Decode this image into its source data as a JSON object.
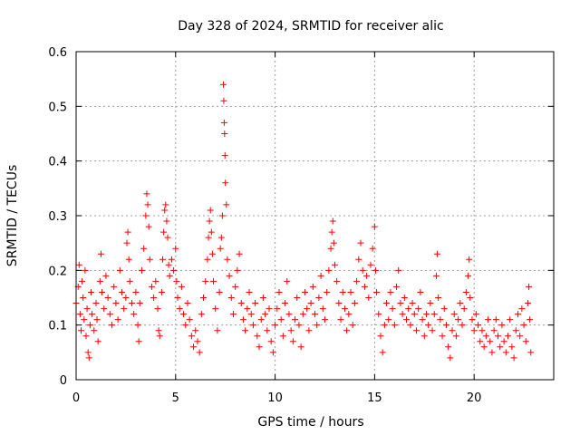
{
  "chart_data": {
    "type": "scatter",
    "title": "Day 328 of 2024, SRMTID for receiver alic",
    "xlabel": "GPS time / hours",
    "ylabel": "SRMTID / TECUs",
    "xlim": [
      0,
      24
    ],
    "ylim": [
      0,
      0.6
    ],
    "xticks": [
      0,
      5,
      10,
      15,
      20
    ],
    "yticks": [
      0,
      0.1,
      0.2,
      0.3,
      0.4,
      0.5,
      0.6
    ],
    "xtick_labels": [
      "0",
      "5",
      "10",
      "15",
      "20"
    ],
    "ytick_labels": [
      "0",
      "0.1",
      "0.2",
      "0.3",
      "0.4",
      "0.5",
      "0.6"
    ],
    "grid": true,
    "marker": "+",
    "series": [
      {
        "name": "SRMTID",
        "color": "#ff0000",
        "points": [
          [
            0.0,
            0.14
          ],
          [
            0.1,
            0.17
          ],
          [
            0.15,
            0.21
          ],
          [
            0.2,
            0.12
          ],
          [
            0.25,
            0.09
          ],
          [
            0.3,
            0.18
          ],
          [
            0.35,
            0.15
          ],
          [
            0.4,
            0.11
          ],
          [
            0.45,
            0.2
          ],
          [
            0.5,
            0.08
          ],
          [
            0.55,
            0.13
          ],
          [
            0.6,
            0.05
          ],
          [
            0.65,
            0.04
          ],
          [
            0.7,
            0.1
          ],
          [
            0.75,
            0.16
          ],
          [
            0.8,
            0.12
          ],
          [
            0.9,
            0.09
          ],
          [
            1.0,
            0.14
          ],
          [
            1.05,
            0.11
          ],
          [
            1.1,
            0.07
          ],
          [
            1.2,
            0.18
          ],
          [
            1.25,
            0.23
          ],
          [
            1.3,
            0.16
          ],
          [
            1.4,
            0.13
          ],
          [
            1.5,
            0.19
          ],
          [
            1.6,
            0.15
          ],
          [
            1.7,
            0.12
          ],
          [
            1.8,
            0.1
          ],
          [
            1.9,
            0.17
          ],
          [
            2.0,
            0.14
          ],
          [
            2.1,
            0.11
          ],
          [
            2.2,
            0.2
          ],
          [
            2.3,
            0.16
          ],
          [
            2.4,
            0.13
          ],
          [
            2.5,
            0.15
          ],
          [
            2.55,
            0.25
          ],
          [
            2.6,
            0.27
          ],
          [
            2.65,
            0.22
          ],
          [
            2.7,
            0.18
          ],
          [
            2.8,
            0.14
          ],
          [
            2.9,
            0.12
          ],
          [
            3.0,
            0.16
          ],
          [
            3.1,
            0.1
          ],
          [
            3.15,
            0.07
          ],
          [
            3.2,
            0.14
          ],
          [
            3.3,
            0.2
          ],
          [
            3.4,
            0.24
          ],
          [
            3.5,
            0.3
          ],
          [
            3.55,
            0.34
          ],
          [
            3.6,
            0.32
          ],
          [
            3.65,
            0.28
          ],
          [
            3.7,
            0.22
          ],
          [
            3.8,
            0.17
          ],
          [
            3.9,
            0.15
          ],
          [
            4.0,
            0.18
          ],
          [
            4.1,
            0.13
          ],
          [
            4.15,
            0.09
          ],
          [
            4.2,
            0.08
          ],
          [
            4.3,
            0.16
          ],
          [
            4.35,
            0.22
          ],
          [
            4.4,
            0.27
          ],
          [
            4.45,
            0.31
          ],
          [
            4.5,
            0.32
          ],
          [
            4.55,
            0.29
          ],
          [
            4.6,
            0.26
          ],
          [
            4.65,
            0.21
          ],
          [
            4.7,
            0.19
          ],
          [
            4.8,
            0.22
          ],
          [
            4.9,
            0.2
          ],
          [
            5.0,
            0.24
          ],
          [
            5.05,
            0.18
          ],
          [
            5.1,
            0.15
          ],
          [
            5.2,
            0.13
          ],
          [
            5.3,
            0.17
          ],
          [
            5.4,
            0.12
          ],
          [
            5.5,
            0.1
          ],
          [
            5.6,
            0.14
          ],
          [
            5.7,
            0.11
          ],
          [
            5.8,
            0.08
          ],
          [
            5.9,
            0.06
          ],
          [
            6.0,
            0.09
          ],
          [
            6.1,
            0.07
          ],
          [
            6.2,
            0.05
          ],
          [
            6.3,
            0.12
          ],
          [
            6.4,
            0.15
          ],
          [
            6.5,
            0.18
          ],
          [
            6.6,
            0.22
          ],
          [
            6.65,
            0.26
          ],
          [
            6.7,
            0.29
          ],
          [
            6.75,
            0.31
          ],
          [
            6.8,
            0.27
          ],
          [
            6.85,
            0.23
          ],
          [
            6.9,
            0.18
          ],
          [
            7.0,
            0.13
          ],
          [
            7.1,
            0.09
          ],
          [
            7.2,
            0.16
          ],
          [
            7.25,
            0.24
          ],
          [
            7.3,
            0.26
          ],
          [
            7.35,
            0.3
          ],
          [
            7.4,
            0.54
          ],
          [
            7.42,
            0.51
          ],
          [
            7.44,
            0.47
          ],
          [
            7.46,
            0.45
          ],
          [
            7.48,
            0.41
          ],
          [
            7.5,
            0.36
          ],
          [
            7.55,
            0.32
          ],
          [
            7.6,
            0.22
          ],
          [
            7.7,
            0.19
          ],
          [
            7.8,
            0.15
          ],
          [
            7.9,
            0.12
          ],
          [
            8.0,
            0.17
          ],
          [
            8.1,
            0.2
          ],
          [
            8.2,
            0.23
          ],
          [
            8.3,
            0.14
          ],
          [
            8.4,
            0.11
          ],
          [
            8.5,
            0.09
          ],
          [
            8.6,
            0.13
          ],
          [
            8.7,
            0.16
          ],
          [
            8.8,
            0.12
          ],
          [
            8.9,
            0.1
          ],
          [
            9.0,
            0.14
          ],
          [
            9.1,
            0.08
          ],
          [
            9.2,
            0.06
          ],
          [
            9.3,
            0.11
          ],
          [
            9.4,
            0.15
          ],
          [
            9.5,
            0.12
          ],
          [
            9.6,
            0.09
          ],
          [
            9.7,
            0.13
          ],
          [
            9.8,
            0.07
          ],
          [
            9.9,
            0.05
          ],
          [
            10.0,
            0.1
          ],
          [
            10.1,
            0.13
          ],
          [
            10.2,
            0.16
          ],
          [
            10.3,
            0.11
          ],
          [
            10.4,
            0.08
          ],
          [
            10.5,
            0.14
          ],
          [
            10.6,
            0.18
          ],
          [
            10.7,
            0.12
          ],
          [
            10.8,
            0.09
          ],
          [
            10.9,
            0.07
          ],
          [
            11.0,
            0.11
          ],
          [
            11.1,
            0.15
          ],
          [
            11.2,
            0.1
          ],
          [
            11.3,
            0.06
          ],
          [
            11.4,
            0.12
          ],
          [
            11.5,
            0.16
          ],
          [
            11.6,
            0.13
          ],
          [
            11.7,
            0.09
          ],
          [
            11.8,
            0.14
          ],
          [
            11.9,
            0.17
          ],
          [
            12.0,
            0.12
          ],
          [
            12.1,
            0.1
          ],
          [
            12.2,
            0.15
          ],
          [
            12.3,
            0.19
          ],
          [
            12.4,
            0.13
          ],
          [
            12.5,
            0.11
          ],
          [
            12.6,
            0.16
          ],
          [
            12.7,
            0.2
          ],
          [
            12.8,
            0.24
          ],
          [
            12.85,
            0.27
          ],
          [
            12.9,
            0.29
          ],
          [
            12.95,
            0.25
          ],
          [
            13.0,
            0.21
          ],
          [
            13.1,
            0.18
          ],
          [
            13.2,
            0.14
          ],
          [
            13.3,
            0.11
          ],
          [
            13.4,
            0.16
          ],
          [
            13.5,
            0.13
          ],
          [
            13.6,
            0.09
          ],
          [
            13.7,
            0.12
          ],
          [
            13.8,
            0.16
          ],
          [
            13.9,
            0.1
          ],
          [
            14.0,
            0.14
          ],
          [
            14.1,
            0.18
          ],
          [
            14.2,
            0.22
          ],
          [
            14.3,
            0.25
          ],
          [
            14.4,
            0.2
          ],
          [
            14.5,
            0.17
          ],
          [
            14.6,
            0.19
          ],
          [
            14.7,
            0.15
          ],
          [
            14.8,
            0.21
          ],
          [
            14.9,
            0.24
          ],
          [
            15.0,
            0.28
          ],
          [
            15.05,
            0.2
          ],
          [
            15.1,
            0.16
          ],
          [
            15.2,
            0.12
          ],
          [
            15.3,
            0.08
          ],
          [
            15.4,
            0.05
          ],
          [
            15.5,
            0.1
          ],
          [
            15.6,
            0.14
          ],
          [
            15.7,
            0.11
          ],
          [
            15.8,
            0.16
          ],
          [
            15.9,
            0.13
          ],
          [
            16.0,
            0.1
          ],
          [
            16.1,
            0.17
          ],
          [
            16.2,
            0.2
          ],
          [
            16.3,
            0.14
          ],
          [
            16.4,
            0.12
          ],
          [
            16.5,
            0.15
          ],
          [
            16.6,
            0.11
          ],
          [
            16.7,
            0.13
          ],
          [
            16.8,
            0.1
          ],
          [
            16.9,
            0.14
          ],
          [
            17.0,
            0.12
          ],
          [
            17.1,
            0.09
          ],
          [
            17.2,
            0.13
          ],
          [
            17.3,
            0.16
          ],
          [
            17.4,
            0.11
          ],
          [
            17.5,
            0.08
          ],
          [
            17.6,
            0.12
          ],
          [
            17.7,
            0.1
          ],
          [
            17.8,
            0.14
          ],
          [
            17.9,
            0.09
          ],
          [
            18.0,
            0.12
          ],
          [
            18.1,
            0.19
          ],
          [
            18.15,
            0.23
          ],
          [
            18.2,
            0.15
          ],
          [
            18.3,
            0.11
          ],
          [
            18.4,
            0.08
          ],
          [
            18.5,
            0.13
          ],
          [
            18.6,
            0.1
          ],
          [
            18.7,
            0.06
          ],
          [
            18.8,
            0.04
          ],
          [
            18.9,
            0.09
          ],
          [
            19.0,
            0.12
          ],
          [
            19.1,
            0.08
          ],
          [
            19.2,
            0.11
          ],
          [
            19.3,
            0.14
          ],
          [
            19.4,
            0.1
          ],
          [
            19.5,
            0.13
          ],
          [
            19.6,
            0.16
          ],
          [
            19.7,
            0.19
          ],
          [
            19.75,
            0.22
          ],
          [
            19.8,
            0.15
          ],
          [
            19.9,
            0.11
          ],
          [
            20.0,
            0.09
          ],
          [
            20.1,
            0.12
          ],
          [
            20.2,
            0.1
          ],
          [
            20.3,
            0.07
          ],
          [
            20.4,
            0.09
          ],
          [
            20.5,
            0.06
          ],
          [
            20.6,
            0.08
          ],
          [
            20.7,
            0.11
          ],
          [
            20.8,
            0.07
          ],
          [
            20.9,
            0.05
          ],
          [
            21.0,
            0.09
          ],
          [
            21.1,
            0.11
          ],
          [
            21.2,
            0.08
          ],
          [
            21.3,
            0.06
          ],
          [
            21.4,
            0.1
          ],
          [
            21.5,
            0.07
          ],
          [
            21.6,
            0.05
          ],
          [
            21.7,
            0.08
          ],
          [
            21.8,
            0.11
          ],
          [
            21.9,
            0.06
          ],
          [
            22.0,
            0.04
          ],
          [
            22.1,
            0.09
          ],
          [
            22.2,
            0.12
          ],
          [
            22.3,
            0.08
          ],
          [
            22.4,
            0.13
          ],
          [
            22.5,
            0.1
          ],
          [
            22.6,
            0.07
          ],
          [
            22.7,
            0.14
          ],
          [
            22.75,
            0.17
          ],
          [
            22.8,
            0.11
          ],
          [
            22.85,
            0.05
          ]
        ]
      }
    ]
  }
}
